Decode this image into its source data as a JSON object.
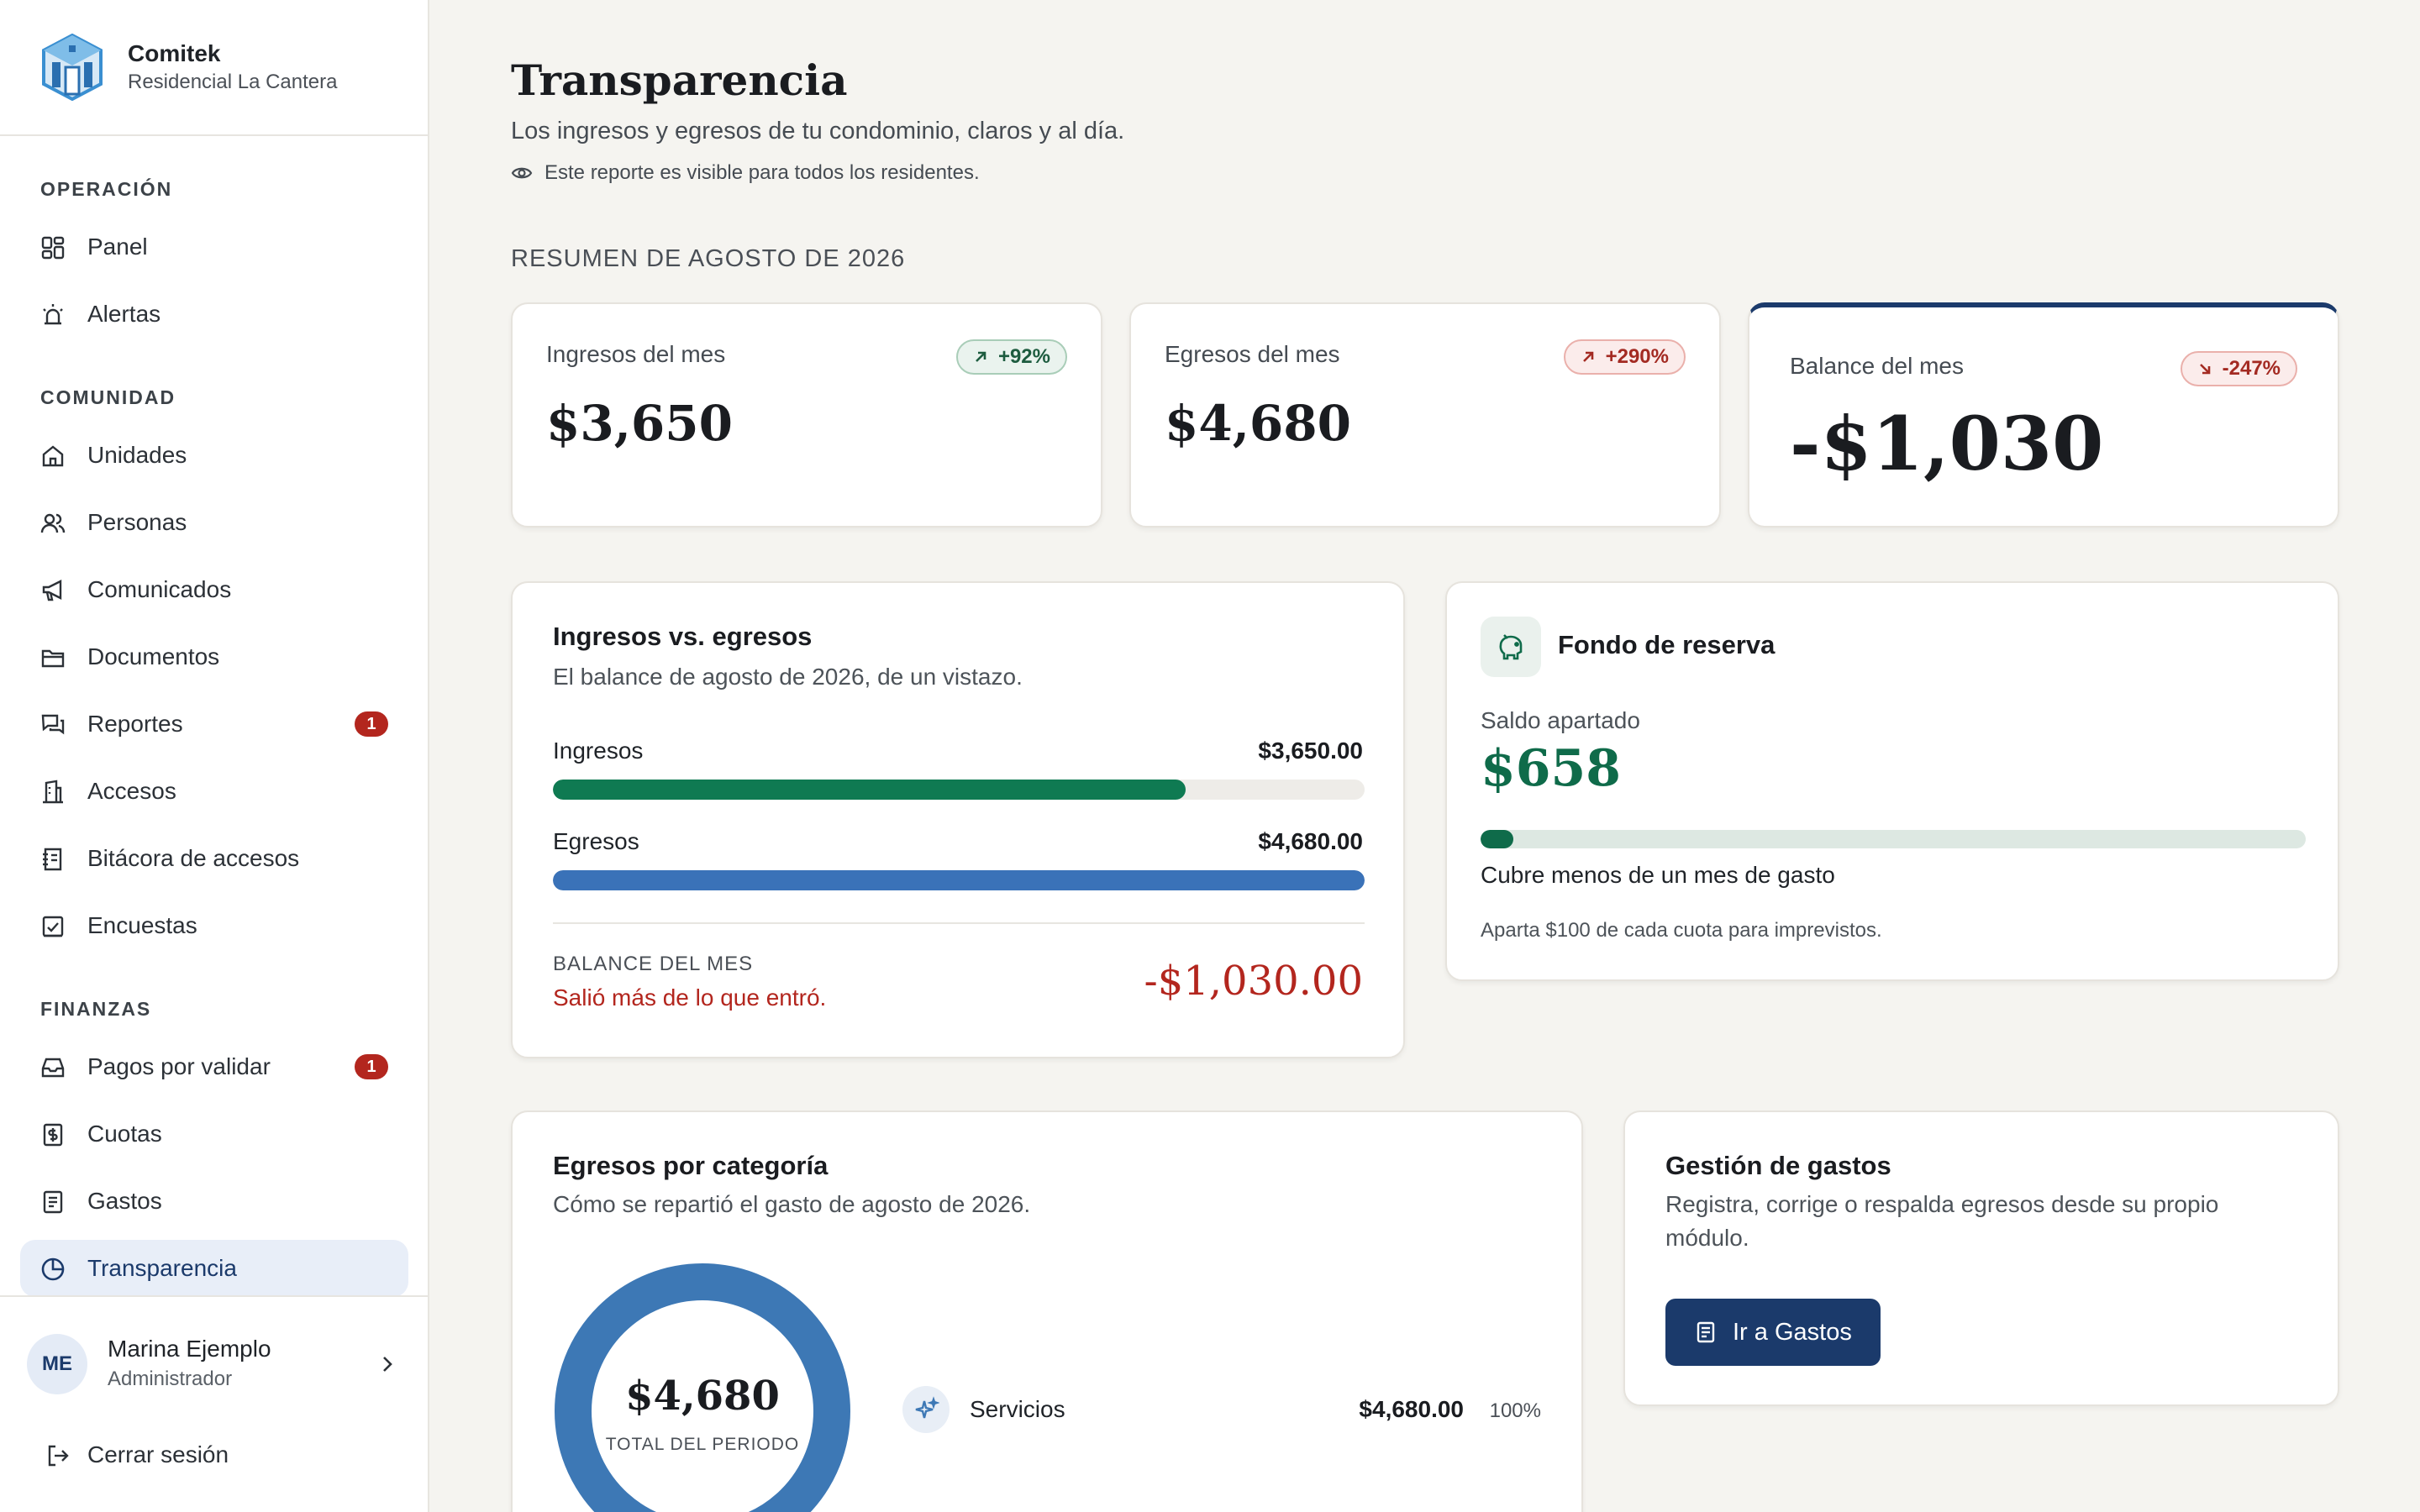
{
  "brand": {
    "name": "Comitek",
    "subtitle": "Residencial La Cantera"
  },
  "sidebar": {
    "sections": [
      {
        "title": "OPERACIÓN"
      },
      {
        "title": "COMUNIDAD"
      },
      {
        "title": "FINANZAS"
      }
    ],
    "items": [
      {
        "label": "Panel",
        "icon": "dashboard-icon"
      },
      {
        "label": "Alertas",
        "icon": "alarm-icon"
      },
      {
        "label": "Unidades",
        "icon": "home-icon"
      },
      {
        "label": "Personas",
        "icon": "users-icon"
      },
      {
        "label": "Comunicados",
        "icon": "megaphone-icon"
      },
      {
        "label": "Documentos",
        "icon": "folder-icon"
      },
      {
        "label": "Reportes",
        "icon": "chat-report-icon",
        "badge": "1"
      },
      {
        "label": "Accesos",
        "icon": "building-icon"
      },
      {
        "label": "Bitácora de accesos",
        "icon": "log-icon"
      },
      {
        "label": "Encuestas",
        "icon": "poll-icon"
      },
      {
        "label": "Pagos por validar",
        "icon": "inbox-icon",
        "badge": "1"
      },
      {
        "label": "Cuotas",
        "icon": "receipt-dollar-icon"
      },
      {
        "label": "Gastos",
        "icon": "receipt-icon"
      },
      {
        "label": "Transparencia",
        "icon": "pie-chart-icon",
        "active": true
      }
    ],
    "user": {
      "initials": "ME",
      "name": "Marina Ejemplo",
      "role": "Administrador"
    },
    "logout_label": "Cerrar sesión"
  },
  "header": {
    "title": "Transparencia",
    "subtitle": "Los ingresos y egresos de tu condominio, claros y al día.",
    "visibility_note": "Este reporte es visible para todos los residentes."
  },
  "summary": {
    "label": "RESUMEN DE AGOSTO DE 2026",
    "kpis": [
      {
        "label": "Ingresos del mes",
        "value": "$3,650",
        "change": "+92%",
        "trend": "up"
      },
      {
        "label": "Egresos del mes",
        "value": "$4,680",
        "change": "+290%",
        "trend": "up"
      },
      {
        "label": "Balance del mes",
        "value": "-$1,030",
        "change": "-247%",
        "trend": "down"
      }
    ]
  },
  "comparison": {
    "title": "Ingresos vs. egresos",
    "subtitle": "El balance de agosto de 2026, de un vistazo.",
    "rows": [
      {
        "label": "Ingresos",
        "amount": "$3,650.00",
        "fraction": 0.78,
        "color": "#0f7a52"
      },
      {
        "label": "Egresos",
        "amount": "$4,680.00",
        "fraction": 1.0,
        "color": "#3a72b8"
      }
    ],
    "balance_label": "BALANCE DEL MES",
    "balance_note": "Salió más de lo que entró.",
    "balance_value": "-$1,030.00"
  },
  "reserve": {
    "title": "Fondo de reserva",
    "saldo_label": "Saldo apartado",
    "saldo_value": "$658",
    "progress_fraction": 0.04,
    "coverage_text": "Cubre menos de un mes de gasto",
    "tip": "Aparta $100 de cada cuota para imprevistos."
  },
  "categories": {
    "title": "Egresos por categoría",
    "subtitle": "Cómo se repartió el gasto de agosto de 2026.",
    "donut_total": "$4,680",
    "donut_caption": "TOTAL DEL PERIODO",
    "items": [
      {
        "name": "Servicios",
        "amount": "$4,680.00",
        "percent": "100%",
        "share": 1.0,
        "icon": "sparkle-icon",
        "color": "#3d78b5"
      }
    ]
  },
  "expenses_mgmt": {
    "title": "Gestión de gastos",
    "description_line1": "Registra, corrige o respalda egresos desde su propio",
    "description_line2": "módulo.",
    "button_label": "Ir a Gastos"
  },
  "colors": {
    "primary": "#1b3a6b",
    "income": "#0f7a52",
    "expense": "#3a72b8",
    "negative": "#b3261e",
    "reserve": "#0f6b4a"
  }
}
